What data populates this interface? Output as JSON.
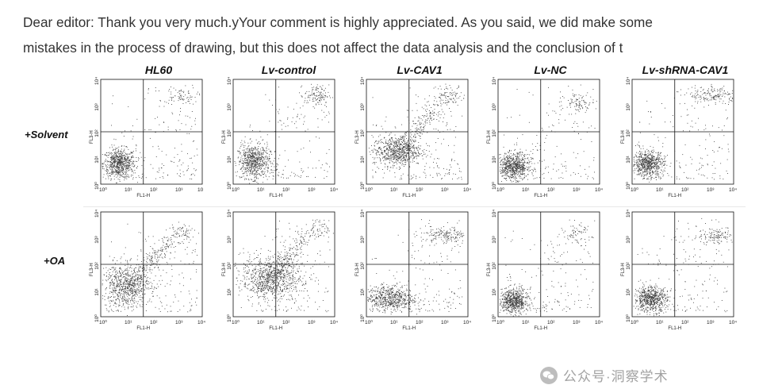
{
  "message": {
    "line1": "Dear editor: Thank you very much.yYour comment is highly appreciated. As you said, we did make some",
    "line2": "mistakes in the process of drawing, but this does not affect the data analysis and the conclusion of t"
  },
  "figure": {
    "columns": [
      "HL60",
      "Lv-control",
      "Lv-CAV1",
      "Lv-NC",
      "Lv-shRNA-CAV1"
    ],
    "rows": [
      "+Solvent",
      "+OA"
    ],
    "y_axis_label": "FL3-H",
    "x_axis_label": "FL1-H",
    "x_ticks": [
      "10⁰",
      "10¹",
      "10²",
      "10³",
      "10⁴"
    ],
    "x_ticks_hl60_solvent": [
      "10⁰",
      "10¹",
      "10²",
      "10³",
      "10"
    ],
    "y_ticks": [
      "10⁰",
      "10¹",
      "10²",
      "10³",
      "10⁴"
    ]
  },
  "watermark": {
    "text": "公众号·洞察学术",
    "icon": "wechat-icon"
  },
  "colors": {
    "text": "#333333",
    "dots": "#3a3a3a"
  }
}
